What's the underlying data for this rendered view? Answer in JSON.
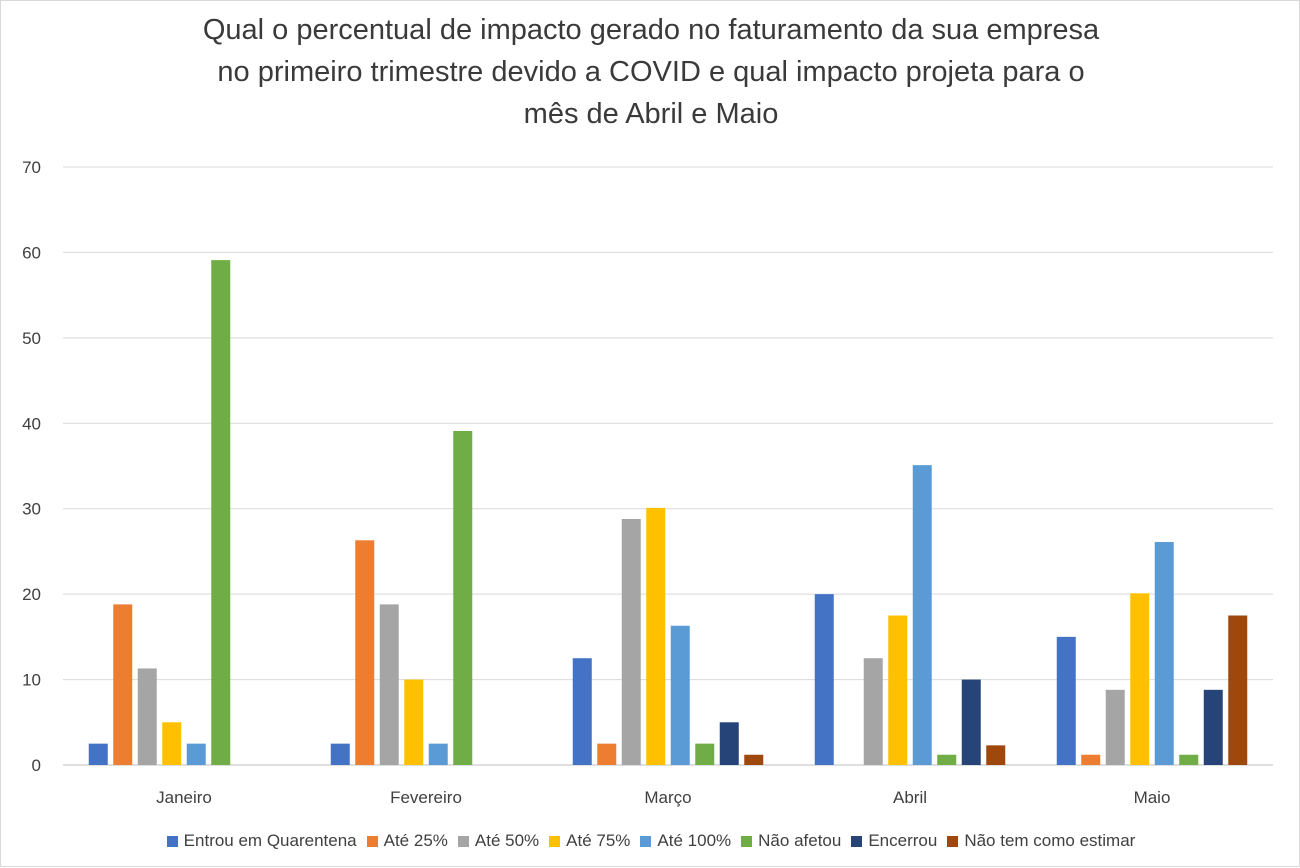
{
  "chart_data": {
    "type": "bar",
    "title": [
      "Qual o percentual de impacto gerado no faturamento da sua empresa",
      "no primeiro trimestre devido a COVID e qual impacto projeta para o",
      "mês de Abril e Maio"
    ],
    "xlabel": "",
    "ylabel": "",
    "ylim": [
      0,
      70
    ],
    "yticks": [
      0,
      10,
      20,
      30,
      40,
      50,
      60,
      70
    ],
    "grid": true,
    "legend_position": "bottom",
    "categories": [
      "Janeiro",
      "Fevereiro",
      "Março",
      "Abril",
      "Maio"
    ],
    "series": [
      {
        "name": "Entrou em Quarentena",
        "color": "#4472c4",
        "values": [
          2.5,
          2.5,
          12.5,
          20,
          15
        ]
      },
      {
        "name": "Até 25%",
        "color": "#ed7d31",
        "values": [
          18.8,
          26.3,
          2.5,
          null,
          1.2
        ]
      },
      {
        "name": "Até 50%",
        "color": "#a5a5a5",
        "values": [
          11.3,
          18.8,
          28.8,
          12.5,
          8.8
        ]
      },
      {
        "name": "Até 75%",
        "color": "#ffc000",
        "values": [
          5,
          10,
          30.1,
          17.5,
          20.1
        ]
      },
      {
        "name": "Até 100%",
        "color": "#5b9bd5",
        "values": [
          2.5,
          2.5,
          16.3,
          35.1,
          26.1
        ]
      },
      {
        "name": "Não afetou",
        "color": "#70ad47",
        "values": [
          59.1,
          39.1,
          2.5,
          1.2,
          1.2
        ]
      },
      {
        "name": "Encerrou",
        "color": "#264478",
        "values": [
          null,
          null,
          5,
          10,
          8.8
        ]
      },
      {
        "name": "Não tem como estimar",
        "color": "#9e480e",
        "values": [
          null,
          null,
          1.2,
          2.3,
          17.5
        ]
      }
    ]
  }
}
